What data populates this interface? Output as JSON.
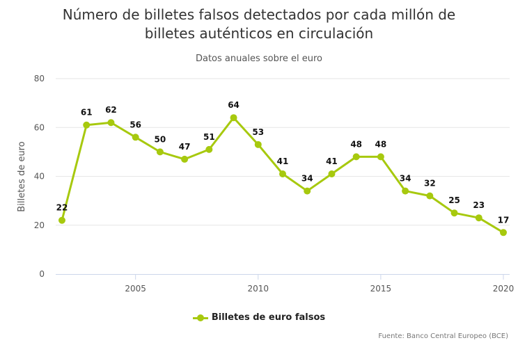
{
  "chart_data": {
    "type": "line",
    "title_line1": "Número de billetes falsos detectados por cada millón de",
    "title_line2": "billetes auténticos en circulación",
    "subtitle": "Datos anuales sobre el euro",
    "ylabel": "Billetes de euro",
    "xlabel": "",
    "ylim": [
      0,
      80
    ],
    "yticks": [
      0,
      20,
      40,
      60,
      80
    ],
    "xlim": [
      2002,
      2020
    ],
    "xticks": [
      2005,
      2010,
      2015,
      2020
    ],
    "grid": true,
    "legend_position": "bottom-center",
    "series": [
      {
        "name": "Billetes de euro falsos",
        "color": "#a7c90e",
        "x": [
          2002,
          2003,
          2004,
          2005,
          2006,
          2007,
          2008,
          2009,
          2010,
          2011,
          2012,
          2013,
          2014,
          2015,
          2016,
          2017,
          2018,
          2019,
          2020
        ],
        "values": [
          22,
          61,
          62,
          56,
          50,
          47,
          51,
          64,
          53,
          41,
          34,
          41,
          48,
          48,
          34,
          32,
          25,
          23,
          17
        ]
      }
    ],
    "source": "Fuente: Banco Central Europeo (BCE)"
  }
}
